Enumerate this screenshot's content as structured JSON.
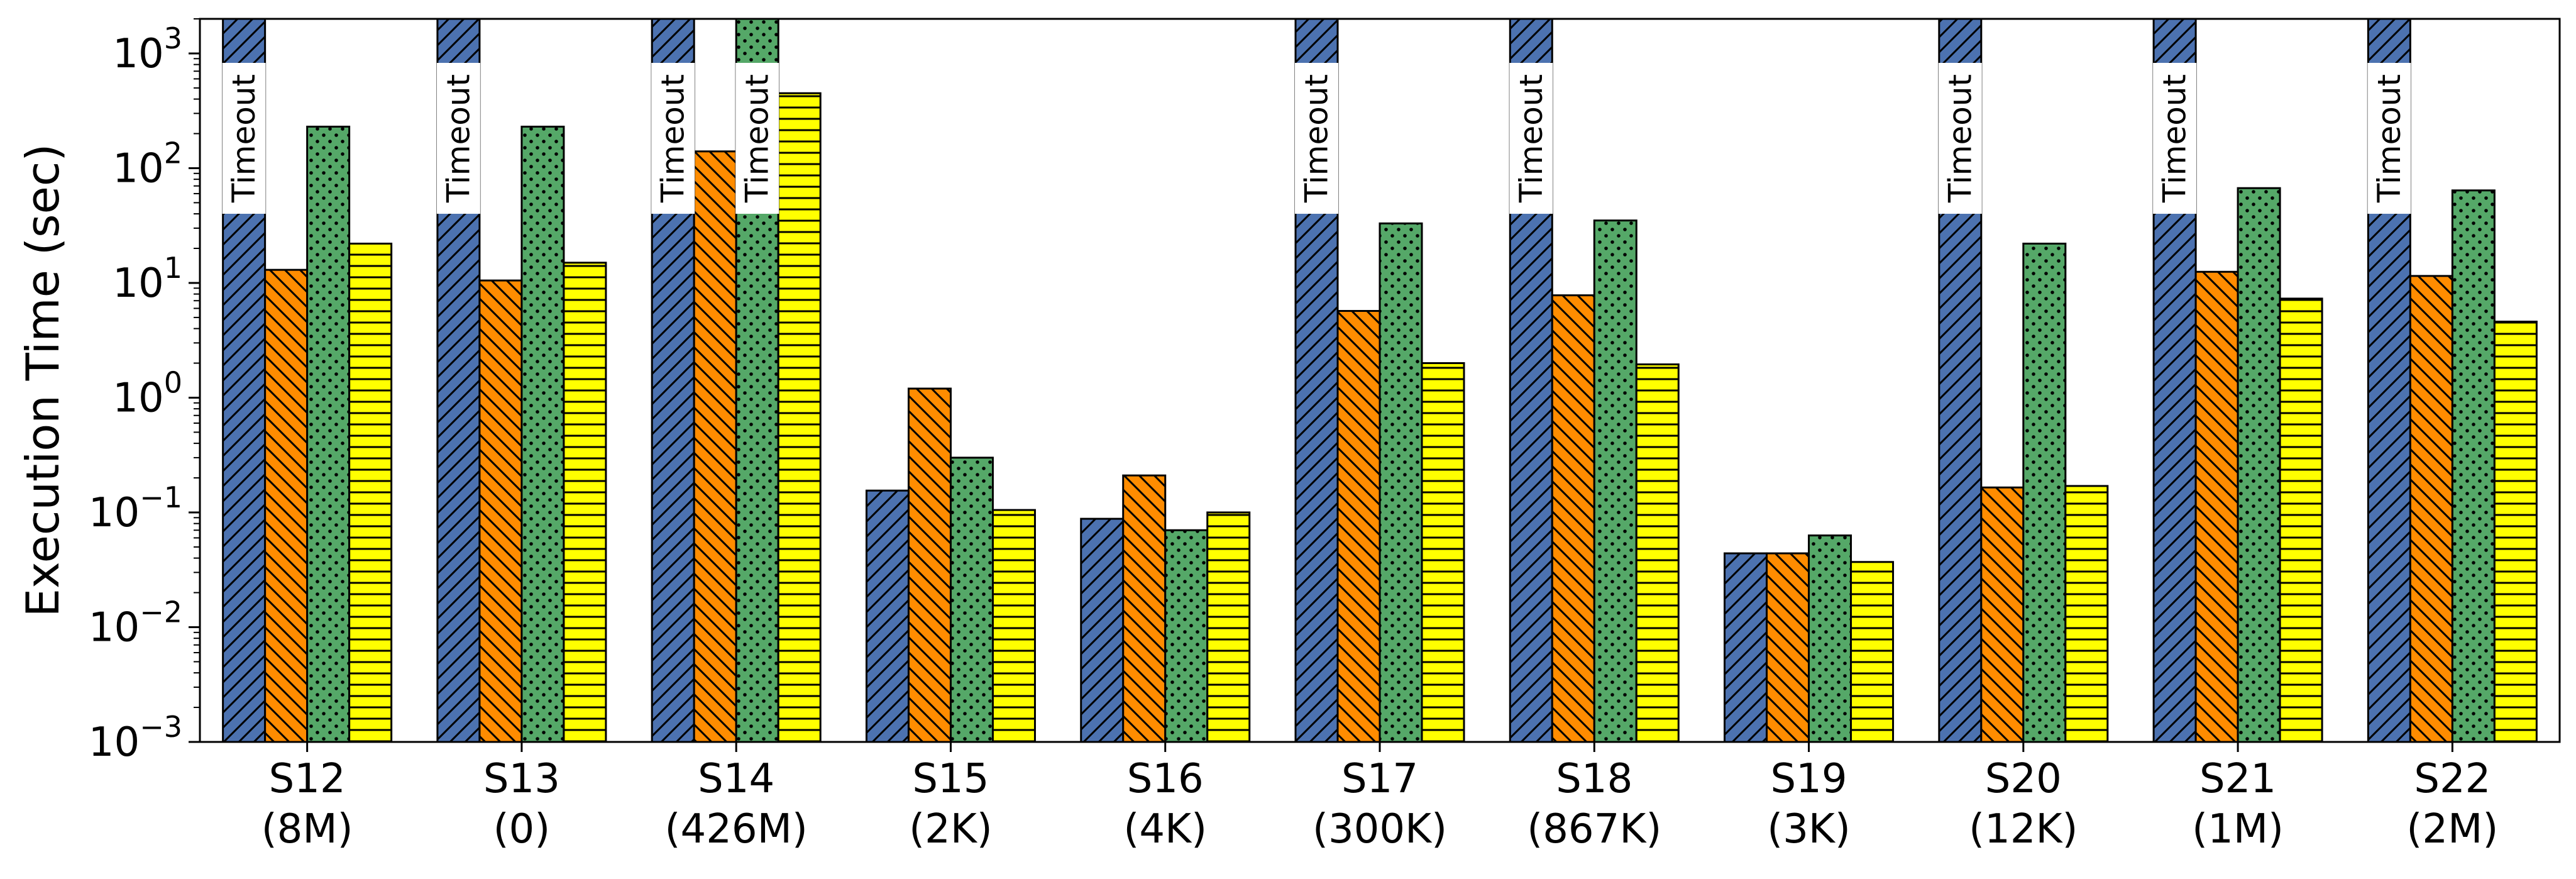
{
  "chart_data": {
    "type": "bar",
    "title": "",
    "xlabel": "",
    "ylabel": "Execution Time (sec)",
    "yscale": "log",
    "ylim": [
      0.001,
      2000
    ],
    "y_ticks": [
      {
        "base": "10",
        "exp": "−3",
        "value": 0.001
      },
      {
        "base": "10",
        "exp": "−2",
        "value": 0.01
      },
      {
        "base": "10",
        "exp": "−1",
        "value": 0.1
      },
      {
        "base": "10",
        "exp": "0",
        "value": 1
      },
      {
        "base": "10",
        "exp": "1",
        "value": 10
      },
      {
        "base": "10",
        "exp": "2",
        "value": 100
      },
      {
        "base": "10",
        "exp": "3",
        "value": 1000
      }
    ],
    "categories": [
      {
        "name": "S12",
        "sub": "(8M)"
      },
      {
        "name": "S13",
        "sub": "(0)"
      },
      {
        "name": "S14",
        "sub": "(426M)"
      },
      {
        "name": "S15",
        "sub": "(2K)"
      },
      {
        "name": "S16",
        "sub": "(4K)"
      },
      {
        "name": "S17",
        "sub": "(300K)"
      },
      {
        "name": "S18",
        "sub": "(867K)"
      },
      {
        "name": "S19",
        "sub": "(3K)"
      },
      {
        "name": "S20",
        "sub": "(12K)"
      },
      {
        "name": "S21",
        "sub": "(1M)"
      },
      {
        "name": "S22",
        "sub": "(2M)"
      }
    ],
    "timeout_label": "Timeout",
    "series": [
      {
        "color": "#4c72b0",
        "pattern": "diagonal-forward",
        "values": [
          "Timeout",
          "Timeout",
          "Timeout",
          0.155,
          0.088,
          "Timeout",
          "Timeout",
          0.044,
          "Timeout",
          "Timeout",
          "Timeout"
        ]
      },
      {
        "color": "#ff8c00",
        "pattern": "diagonal-back",
        "values": [
          13,
          10.5,
          140,
          1.2,
          0.21,
          5.7,
          7.8,
          0.044,
          0.165,
          12.5,
          11.5
        ]
      },
      {
        "color": "#55a868",
        "pattern": "dots",
        "values": [
          230,
          230,
          "Timeout",
          0.3,
          0.07,
          33,
          35,
          0.063,
          22,
          67,
          64
        ]
      },
      {
        "color": "#ffff00",
        "pattern": "horizontal",
        "values": [
          22,
          15,
          450,
          0.105,
          0.1,
          2.0,
          1.95,
          0.037,
          0.17,
          7.3,
          4.6
        ]
      }
    ],
    "grid": false,
    "legend": "none"
  }
}
